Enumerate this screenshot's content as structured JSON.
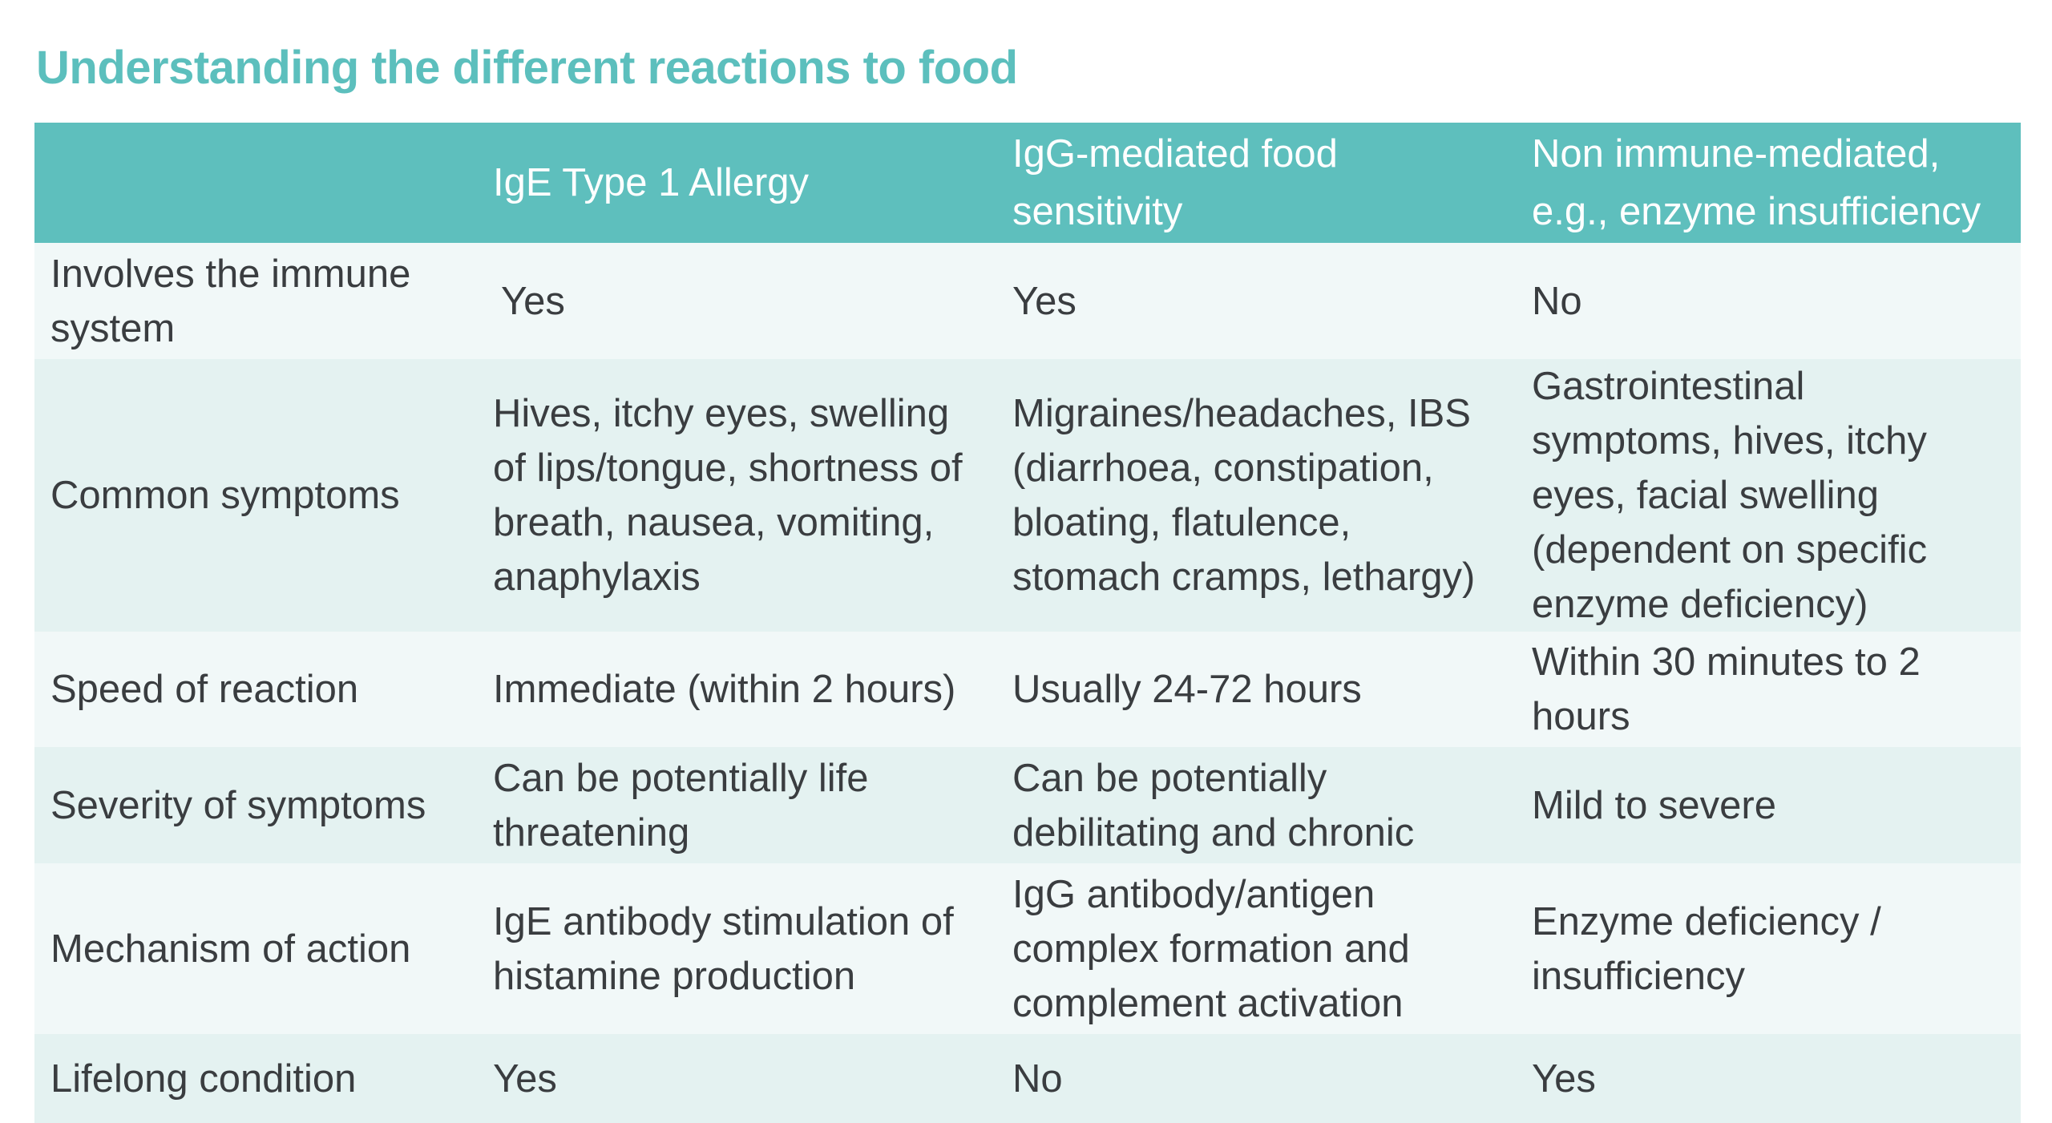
{
  "title": "Understanding the different reactions to food",
  "table": {
    "headers": [
      "",
      "IgE Type 1 Allergy",
      "IgG-mediated food sensitivity",
      "Non immune-mediated, e.g., enzyme insufficiency"
    ],
    "rows": [
      {
        "label": "Involves the immune system",
        "cells": [
          "Yes",
          "Yes",
          "No"
        ]
      },
      {
        "label": "Common symptoms",
        "cells": [
          "Hives, itchy eyes, swelling of lips/tongue, shortness of breath, nausea, vomiting, anaphylaxis",
          "Migraines/headaches, IBS (diarrhoea, constipation, bloating, flatulence, stomach cramps, lethargy)",
          "Gastrointestinal symptoms, hives, itchy eyes, facial swelling (dependent on specific enzyme deficiency)"
        ]
      },
      {
        "label": "Speed of reaction",
        "cells": [
          "Immediate (within 2 hours)",
          "Usually 24-72 hours",
          "Within 30 minutes to 2 hours"
        ]
      },
      {
        "label": "Severity of symptoms",
        "cells": [
          "Can be potentially life threatening",
          "Can be potentially debilitating and chronic",
          "Mild to severe"
        ]
      },
      {
        "label": "Mechanism of action",
        "cells": [
          "IgE antibody stimulation of histamine production",
          "IgG antibody/antigen complex formation and complement activation",
          "Enzyme deficiency / insufficiency"
        ]
      },
      {
        "label": "Lifelong condition",
        "cells": [
          "Yes",
          "No",
          "Yes"
        ]
      }
    ]
  },
  "colors": {
    "title": "#5cbfbd",
    "header_background": "#5ebfbd",
    "row_light": "#f1f8f8",
    "row_dark": "#e4f2f1",
    "text": "#3a3d40"
  }
}
